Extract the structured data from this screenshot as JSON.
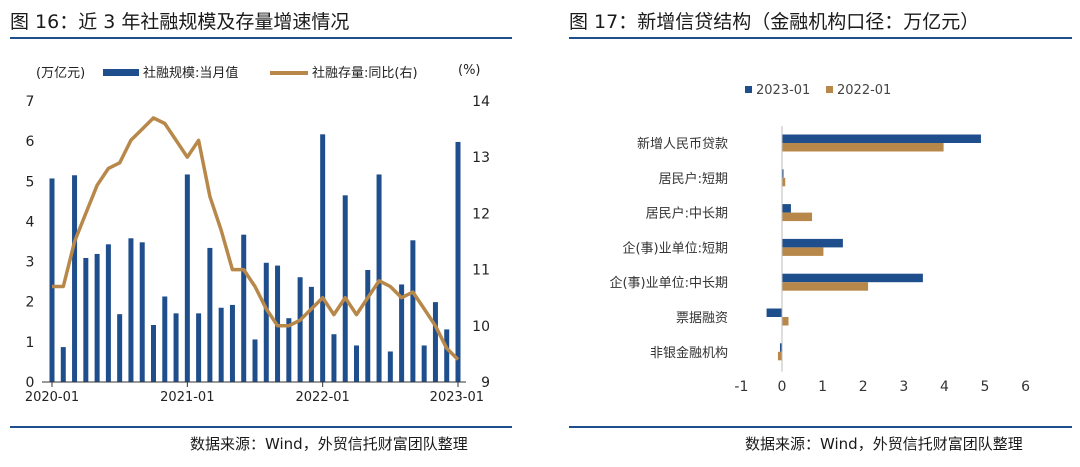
{
  "left_panel": {
    "title": "图 16：近 3 年社融规模及存量增速情况",
    "source": "数据来源：Wind，外贸信托财富团队整理",
    "unit_left": "(万亿元)",
    "unit_right": "(%)"
  },
  "right_panel": {
    "title": "图 17：新增信贷结构（金融机构口径：万亿元）",
    "source": "数据来源：Wind，外贸信托财富团队整理"
  },
  "colors": {
    "navy": "#1f4e8c",
    "gold": "#b8884a",
    "rule": "#1f4e8c"
  },
  "chart_data": [
    {
      "type": "bar+line",
      "legend_placement": "top",
      "series": [
        {
          "name": "社融规模:当月值",
          "type": "bar",
          "axis": "left",
          "values": [
            5.07,
            0.87,
            5.15,
            3.09,
            3.19,
            3.43,
            1.69,
            3.58,
            3.48,
            1.42,
            2.13,
            1.71,
            5.17,
            1.71,
            3.34,
            1.85,
            1.92,
            3.67,
            1.06,
            2.97,
            2.9,
            1.59,
            2.61,
            2.37,
            6.17,
            1.19,
            4.65,
            0.91,
            2.79,
            5.17,
            0.76,
            2.43,
            3.53,
            0.91,
            1.99,
            1.31,
            5.98
          ]
        },
        {
          "name": "社融存量:同比(右)",
          "type": "line",
          "axis": "right",
          "values": [
            10.7,
            10.7,
            11.5,
            12.0,
            12.5,
            12.8,
            12.9,
            13.3,
            13.5,
            13.7,
            13.6,
            13.3,
            13.0,
            13.3,
            12.3,
            11.7,
            11.0,
            11.0,
            10.7,
            10.3,
            10.0,
            10.0,
            10.1,
            10.3,
            10.5,
            10.2,
            10.5,
            10.2,
            10.5,
            10.8,
            10.7,
            10.5,
            10.6,
            10.3,
            10.0,
            9.6,
            9.4
          ]
        }
      ],
      "x_tick_labels": [
        "2020-01",
        "2021-01",
        "2022-01",
        "2023-01"
      ],
      "y_left": {
        "min": 0,
        "max": 7,
        "ticks": [
          0,
          1,
          2,
          3,
          4,
          5,
          6,
          7
        ]
      },
      "y_right": {
        "min": 9,
        "max": 14,
        "ticks": [
          9,
          10,
          11,
          12,
          13,
          14
        ]
      }
    },
    {
      "type": "bar",
      "orientation": "horizontal",
      "legend_placement": "top",
      "categories": [
        "新增人民币贷款",
        "居民户:短期",
        "居民户:中长期",
        "企(事)业单位:短期",
        "企(事)业单位:中长期",
        "票据融资",
        "非银金融机构"
      ],
      "series": [
        {
          "name": "2023-01",
          "values": [
            4.9,
            0.0,
            0.22,
            1.5,
            3.47,
            -0.38,
            -0.05
          ]
        },
        {
          "name": "2022-01",
          "values": [
            3.98,
            0.08,
            0.74,
            1.02,
            2.12,
            0.16,
            -0.1
          ]
        }
      ],
      "xlim": [
        -1,
        6
      ],
      "x_ticks": [
        -1,
        0,
        1,
        2,
        3,
        4,
        5,
        6
      ]
    }
  ]
}
